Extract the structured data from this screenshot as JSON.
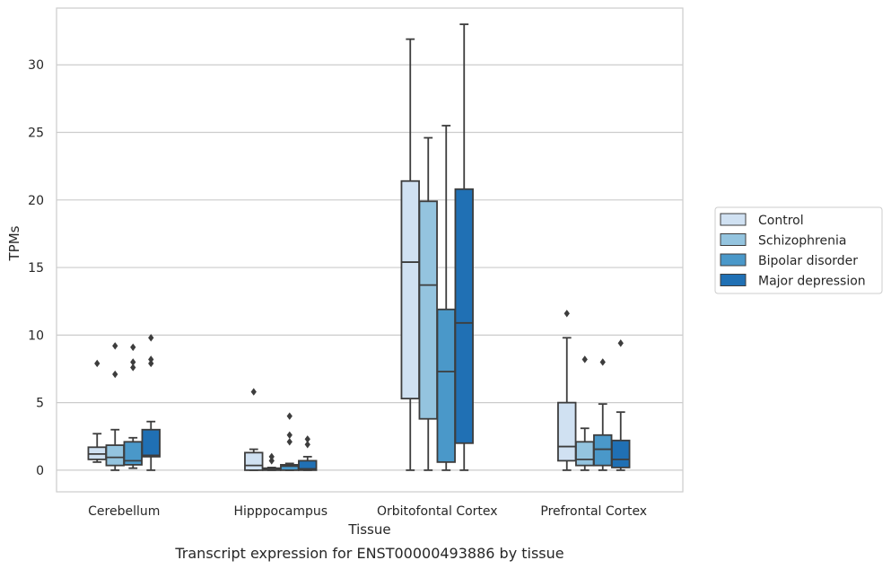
{
  "chart_data": {
    "type": "box",
    "caption": "Transcript expression for ENST00000493886 by tissue",
    "xlabel": "Tissue",
    "ylabel": "TPMs",
    "ylim": [
      -1.6,
      34.2
    ],
    "yticks": [
      0,
      5,
      10,
      15,
      20,
      25,
      30
    ],
    "grid": true,
    "legend_position": "right",
    "categories": [
      "Cerebellum",
      "Hipppocampus",
      "Orbitofontal Cortex",
      "Prefrontal Cortex"
    ],
    "series": [
      {
        "name": "Control",
        "color": "#d0e1f2",
        "boxes": [
          {
            "whislo": 0.6,
            "q1": 0.8,
            "med": 1.2,
            "q3": 1.7,
            "whishi": 2.7,
            "fliers": [
              7.9
            ]
          },
          {
            "whislo": 0.0,
            "q1": 0.0,
            "med": 0.35,
            "q3": 1.3,
            "whishi": 1.55,
            "fliers": [
              5.8
            ]
          },
          {
            "whislo": 0.0,
            "q1": 5.3,
            "med": 15.4,
            "q3": 21.4,
            "whishi": 31.9,
            "fliers": []
          },
          {
            "whislo": 0.0,
            "q1": 0.7,
            "med": 1.75,
            "q3": 5.0,
            "whishi": 9.8,
            "fliers": [
              11.6
            ]
          }
        ]
      },
      {
        "name": "Schizophrenia",
        "color": "#94c4df",
        "boxes": [
          {
            "whislo": 0.0,
            "q1": 0.35,
            "med": 0.95,
            "q3": 1.85,
            "whishi": 3.0,
            "fliers": [
              7.1,
              9.2
            ]
          },
          {
            "whislo": 0.0,
            "q1": 0.0,
            "med": 0.05,
            "q3": 0.15,
            "whishi": 0.2,
            "fliers": [
              0.7,
              1.0
            ]
          },
          {
            "whislo": 0.0,
            "q1": 3.8,
            "med": 13.7,
            "q3": 19.9,
            "whishi": 24.6,
            "fliers": []
          },
          {
            "whislo": 0.0,
            "q1": 0.35,
            "med": 0.8,
            "q3": 2.1,
            "whishi": 3.1,
            "fliers": [
              8.2
            ]
          }
        ]
      },
      {
        "name": "Bipolar disorder",
        "color": "#4a98c9",
        "boxes": [
          {
            "whislo": 0.15,
            "q1": 0.4,
            "med": 0.7,
            "q3": 2.1,
            "whishi": 2.4,
            "fliers": [
              7.6,
              8.0,
              9.1
            ]
          },
          {
            "whislo": 0.0,
            "q1": 0.0,
            "med": 0.3,
            "q3": 0.4,
            "whishi": 0.5,
            "fliers": [
              2.1,
              2.6,
              4.0
            ]
          },
          {
            "whislo": 0.0,
            "q1": 0.6,
            "med": 7.3,
            "q3": 11.9,
            "whishi": 25.5,
            "fliers": []
          },
          {
            "whislo": 0.0,
            "q1": 0.35,
            "med": 1.55,
            "q3": 2.6,
            "whishi": 4.9,
            "fliers": [
              8.0
            ]
          }
        ]
      },
      {
        "name": "Major depression",
        "color": "#2070b4",
        "boxes": [
          {
            "whislo": 0.0,
            "q1": 1.0,
            "med": 1.1,
            "q3": 3.0,
            "whishi": 3.6,
            "fliers": [
              7.9,
              8.2,
              9.8
            ]
          },
          {
            "whislo": 0.0,
            "q1": 0.0,
            "med": 0.1,
            "q3": 0.7,
            "whishi": 1.0,
            "fliers": [
              1.9,
              2.3
            ]
          },
          {
            "whislo": 0.0,
            "q1": 2.0,
            "med": 10.9,
            "q3": 20.8,
            "whishi": 33.0,
            "fliers": []
          },
          {
            "whislo": 0.0,
            "q1": 0.2,
            "med": 0.8,
            "q3": 2.2,
            "whishi": 4.3,
            "fliers": [
              9.4
            ]
          }
        ]
      }
    ]
  }
}
